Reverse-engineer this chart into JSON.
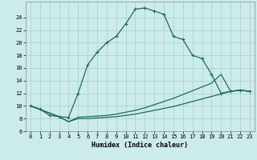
{
  "xlabel": "Humidex (Indice chaleur)",
  "bg_color": "#ccecea",
  "grid_color": "#aaccca",
  "line_color": "#1a6b5e",
  "xlim": [
    -0.5,
    23.5
  ],
  "ylim": [
    6,
    26.5
  ],
  "xticks": [
    0,
    1,
    2,
    3,
    4,
    5,
    6,
    7,
    8,
    9,
    10,
    11,
    12,
    13,
    14,
    15,
    16,
    17,
    18,
    19,
    20,
    21,
    22,
    23
  ],
  "yticks": [
    6,
    8,
    10,
    12,
    14,
    16,
    18,
    20,
    22,
    24
  ],
  "line1_x": [
    0,
    1,
    2,
    3,
    4,
    5,
    6,
    7,
    8,
    9,
    10,
    11,
    12,
    13,
    14,
    15,
    16,
    17,
    18,
    19,
    20,
    21,
    22,
    23
  ],
  "line1_y": [
    10,
    9.5,
    8.5,
    8.3,
    8.2,
    12.0,
    16.5,
    18.5,
    20.0,
    21.0,
    23.0,
    25.3,
    25.5,
    25.0,
    24.5,
    21.0,
    20.5,
    18.0,
    17.5,
    15.0,
    12.0,
    12.3,
    12.5,
    12.3
  ],
  "line2_x": [
    0,
    3,
    4,
    5,
    6,
    7,
    8,
    9,
    10,
    11,
    12,
    13,
    14,
    15,
    16,
    17,
    18,
    19,
    20,
    21,
    22,
    23
  ],
  "line2_y": [
    10,
    8.3,
    7.5,
    8.2,
    8.3,
    8.4,
    8.5,
    8.7,
    9.0,
    9.3,
    9.7,
    10.2,
    10.7,
    11.2,
    11.8,
    12.4,
    13.0,
    13.6,
    15.0,
    12.3,
    12.5,
    12.3
  ],
  "line3_x": [
    0,
    3,
    4,
    5,
    6,
    7,
    8,
    9,
    10,
    11,
    12,
    13,
    14,
    15,
    16,
    17,
    18,
    19,
    20,
    21,
    22,
    23
  ],
  "line3_y": [
    10,
    8.3,
    7.5,
    8.0,
    8.0,
    8.1,
    8.2,
    8.3,
    8.5,
    8.7,
    9.0,
    9.3,
    9.6,
    9.9,
    10.3,
    10.7,
    11.1,
    11.5,
    11.9,
    12.3,
    12.5,
    12.3
  ]
}
